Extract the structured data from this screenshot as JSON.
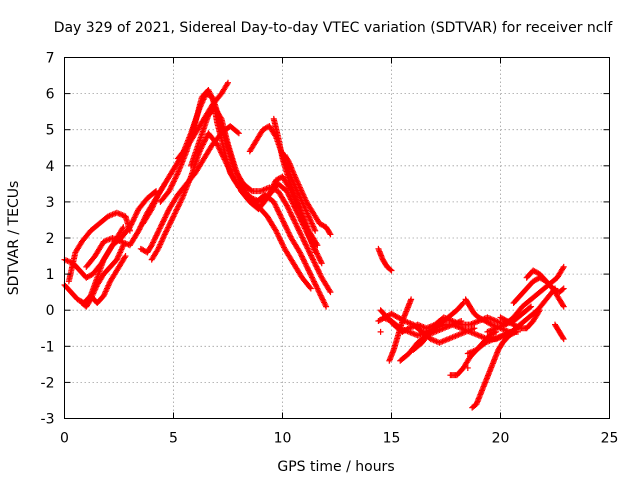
{
  "chart_data": {
    "type": "scatter",
    "title": "Day 329 of 2021, Sidereal Day-to-day VTEC variation (SDTVAR) for receiver nclf",
    "xlabel": "GPS time / hours",
    "ylabel": "SDTVAR / TECUs",
    "xlim": [
      0,
      25
    ],
    "ylim": [
      -3,
      7
    ],
    "xticks": [
      "0",
      "5",
      "10",
      "15",
      "20",
      "25"
    ],
    "yticks": [
      "-3",
      "-2",
      "-1",
      "0",
      "1",
      "2",
      "3",
      "4",
      "5",
      "6",
      "7"
    ],
    "grid": true,
    "marker": "+",
    "series_color": "#ff0000",
    "tracks": [
      [
        [
          0.0,
          0.7
        ],
        [
          0.3,
          0.5
        ],
        [
          0.6,
          0.3
        ],
        [
          0.9,
          0.2
        ],
        [
          1.2,
          0.4
        ],
        [
          1.5,
          0.9
        ],
        [
          1.8,
          1.4
        ],
        [
          2.2,
          1.8
        ],
        [
          2.6,
          2.0
        ],
        [
          3.0,
          2.3
        ],
        [
          3.4,
          2.8
        ],
        [
          3.8,
          3.1
        ],
        [
          4.2,
          3.3
        ]
      ],
      [
        [
          0.0,
          1.4
        ],
        [
          0.4,
          1.3
        ],
        [
          0.7,
          1.1
        ],
        [
          1.0,
          0.9
        ],
        [
          1.3,
          1.0
        ],
        [
          1.7,
          1.3
        ],
        [
          2.0,
          1.6
        ],
        [
          2.3,
          1.9
        ],
        [
          2.7,
          2.3
        ]
      ],
      [
        [
          0.2,
          0.8
        ],
        [
          0.5,
          1.6
        ],
        [
          0.8,
          1.9
        ],
        [
          1.2,
          2.2
        ],
        [
          1.6,
          2.4
        ],
        [
          2.0,
          2.6
        ],
        [
          2.4,
          2.7
        ],
        [
          2.8,
          2.6
        ],
        [
          3.0,
          2.2
        ]
      ],
      [
        [
          0.8,
          0.2
        ],
        [
          1.0,
          0.1
        ],
        [
          1.2,
          0.3
        ],
        [
          1.5,
          0.7
        ],
        [
          1.8,
          1.0
        ],
        [
          2.1,
          1.2
        ],
        [
          2.4,
          1.4
        ],
        [
          2.7,
          1.8
        ]
      ],
      [
        [
          1.0,
          1.2
        ],
        [
          1.4,
          1.5
        ],
        [
          1.8,
          1.9
        ],
        [
          2.2,
          2.0
        ],
        [
          2.6,
          1.9
        ],
        [
          3.0,
          1.8
        ],
        [
          3.4,
          2.2
        ],
        [
          3.8,
          2.7
        ],
        [
          4.2,
          3.1
        ],
        [
          4.6,
          3.5
        ]
      ],
      [
        [
          1.2,
          0.4
        ],
        [
          1.5,
          0.2
        ],
        [
          1.8,
          0.4
        ],
        [
          2.1,
          0.8
        ],
        [
          2.4,
          1.1
        ],
        [
          2.8,
          1.5
        ]
      ],
      [
        [
          3.5,
          1.7
        ],
        [
          3.8,
          1.6
        ],
        [
          4.0,
          1.8
        ],
        [
          4.4,
          2.3
        ],
        [
          4.8,
          2.8
        ],
        [
          5.2,
          3.2
        ],
        [
          5.6,
          3.5
        ],
        [
          6.0,
          3.8
        ],
        [
          6.4,
          4.2
        ],
        [
          6.8,
          4.6
        ],
        [
          7.2,
          4.9
        ],
        [
          7.6,
          5.1
        ],
        [
          8.0,
          4.9
        ]
      ],
      [
        [
          3.6,
          2.4
        ],
        [
          4.0,
          2.8
        ],
        [
          4.3,
          3.2
        ],
        [
          4.6,
          3.5
        ],
        [
          5.0,
          3.9
        ],
        [
          5.4,
          4.3
        ],
        [
          5.8,
          4.9
        ],
        [
          6.2,
          5.6
        ],
        [
          6.5,
          6.0
        ],
        [
          6.8,
          5.9
        ],
        [
          7.0,
          5.2
        ],
        [
          7.3,
          4.5
        ],
        [
          7.6,
          3.8
        ],
        [
          8.0,
          3.4
        ],
        [
          8.4,
          3.1
        ],
        [
          8.8,
          3.0
        ],
        [
          9.2,
          3.2
        ],
        [
          9.6,
          3.0
        ],
        [
          10.0,
          2.5
        ],
        [
          10.4,
          2.0
        ],
        [
          10.8,
          1.6
        ],
        [
          11.2,
          1.1
        ],
        [
          11.6,
          0.6
        ],
        [
          12.0,
          0.1
        ]
      ],
      [
        [
          4.4,
          3.0
        ],
        [
          4.8,
          3.3
        ],
        [
          5.2,
          3.8
        ],
        [
          5.6,
          4.4
        ],
        [
          6.0,
          5.2
        ],
        [
          6.3,
          5.9
        ],
        [
          6.6,
          6.1
        ],
        [
          6.9,
          5.7
        ],
        [
          7.2,
          5.1
        ],
        [
          7.5,
          4.5
        ],
        [
          7.8,
          3.9
        ],
        [
          8.2,
          3.5
        ],
        [
          8.6,
          3.3
        ],
        [
          9.0,
          3.3
        ],
        [
          9.4,
          3.4
        ],
        [
          9.8,
          3.3
        ],
        [
          10.2,
          2.9
        ],
        [
          10.6,
          2.4
        ],
        [
          11.0,
          1.9
        ],
        [
          11.4,
          1.4
        ],
        [
          11.8,
          0.9
        ],
        [
          12.2,
          0.5
        ]
      ],
      [
        [
          4.0,
          1.4
        ],
        [
          4.3,
          1.7
        ],
        [
          4.6,
          2.1
        ],
        [
          5.0,
          2.6
        ],
        [
          5.4,
          3.1
        ],
        [
          5.8,
          3.7
        ],
        [
          6.2,
          4.4
        ],
        [
          6.6,
          4.9
        ],
        [
          7.0,
          4.6
        ],
        [
          7.4,
          4.1
        ],
        [
          7.8,
          3.6
        ],
        [
          8.2,
          3.3
        ],
        [
          8.6,
          3.1
        ],
        [
          9.0,
          3.0
        ],
        [
          9.4,
          3.2
        ],
        [
          9.8,
          3.5
        ],
        [
          10.2,
          3.3
        ],
        [
          10.6,
          2.8
        ],
        [
          11.0,
          2.3
        ],
        [
          11.4,
          1.8
        ],
        [
          11.8,
          1.3
        ]
      ],
      [
        [
          5.2,
          4.2
        ],
        [
          5.6,
          4.5
        ],
        [
          6.0,
          4.9
        ],
        [
          6.4,
          5.3
        ],
        [
          6.8,
          5.7
        ],
        [
          7.2,
          6.0
        ],
        [
          7.5,
          6.3
        ]
      ],
      [
        [
          5.8,
          4.0
        ],
        [
          6.2,
          4.7
        ],
        [
          6.6,
          5.4
        ],
        [
          6.9,
          5.6
        ],
        [
          7.2,
          5.3
        ],
        [
          7.5,
          4.6
        ],
        [
          7.8,
          4.0
        ],
        [
          8.1,
          3.5
        ],
        [
          8.4,
          3.2
        ],
        [
          8.7,
          3.0
        ],
        [
          9.0,
          2.8
        ],
        [
          9.3,
          2.6
        ],
        [
          9.7,
          2.2
        ],
        [
          10.1,
          1.7
        ],
        [
          10.5,
          1.3
        ],
        [
          10.9,
          0.9
        ],
        [
          11.3,
          0.6
        ]
      ],
      [
        [
          8.5,
          4.4
        ],
        [
          8.8,
          4.7
        ],
        [
          9.1,
          5.0
        ],
        [
          9.4,
          5.1
        ],
        [
          9.7,
          4.8
        ],
        [
          10.0,
          4.3
        ],
        [
          10.3,
          3.8
        ],
        [
          10.6,
          3.4
        ],
        [
          10.9,
          3.0
        ],
        [
          11.2,
          2.6
        ],
        [
          11.5,
          2.2
        ]
      ],
      [
        [
          8.1,
          3.3
        ],
        [
          8.5,
          3.0
        ],
        [
          8.9,
          2.8
        ],
        [
          9.3,
          3.1
        ],
        [
          9.7,
          3.6
        ],
        [
          10.0,
          3.7
        ],
        [
          10.4,
          3.3
        ],
        [
          10.8,
          2.8
        ],
        [
          11.2,
          2.2
        ],
        [
          11.6,
          1.8
        ]
      ],
      [
        [
          9.6,
          5.3
        ],
        [
          9.8,
          4.8
        ],
        [
          10.0,
          4.2
        ],
        [
          10.3,
          3.6
        ],
        [
          10.6,
          3.1
        ],
        [
          10.9,
          2.6
        ],
        [
          11.2,
          2.1
        ],
        [
          11.5,
          1.6
        ]
      ],
      [
        [
          10.1,
          4.3
        ],
        [
          10.3,
          4.1
        ],
        [
          10.5,
          3.8
        ],
        [
          10.8,
          3.4
        ],
        [
          11.1,
          3.0
        ],
        [
          11.4,
          2.7
        ],
        [
          11.7,
          2.4
        ],
        [
          12.0,
          2.3
        ],
        [
          12.2,
          2.1
        ]
      ],
      [
        [
          14.4,
          1.7
        ],
        [
          14.6,
          1.4
        ],
        [
          14.8,
          1.2
        ],
        [
          15.0,
          1.1
        ]
      ],
      [
        [
          14.4,
          -0.3
        ],
        [
          14.7,
          -0.2
        ],
        [
          15.0,
          -0.1
        ],
        [
          15.3,
          -0.2
        ],
        [
          15.6,
          -0.3
        ],
        [
          16.0,
          -0.4
        ],
        [
          16.4,
          -0.6
        ],
        [
          16.8,
          -0.8
        ],
        [
          17.2,
          -0.9
        ],
        [
          17.6,
          -0.8
        ],
        [
          18.0,
          -0.7
        ],
        [
          18.4,
          -0.6
        ],
        [
          18.8,
          -0.5
        ]
      ],
      [
        [
          14.5,
          0.0
        ],
        [
          14.8,
          -0.2
        ],
        [
          15.1,
          -0.4
        ],
        [
          15.5,
          -0.6
        ],
        [
          15.8,
          -0.5
        ],
        [
          16.2,
          -0.4
        ],
        [
          16.6,
          -0.5
        ],
        [
          17.0,
          -0.4
        ],
        [
          17.4,
          -0.2
        ],
        [
          17.8,
          -0.3
        ],
        [
          18.2,
          -0.4
        ],
        [
          18.6,
          -0.4
        ],
        [
          19.0,
          -0.3
        ],
        [
          19.4,
          -0.2
        ],
        [
          19.8,
          -0.3
        ],
        [
          20.2,
          -0.4
        ],
        [
          20.6,
          -0.3
        ],
        [
          21.0,
          -0.1
        ],
        [
          21.4,
          0.1
        ]
      ],
      [
        [
          14.6,
          -0.2
        ],
        [
          15.0,
          -0.3
        ],
        [
          15.4,
          -0.5
        ],
        [
          15.8,
          -0.6
        ],
        [
          16.2,
          -0.7
        ],
        [
          16.6,
          -0.6
        ],
        [
          17.0,
          -0.5
        ],
        [
          17.4,
          -0.4
        ],
        [
          17.8,
          -0.4
        ],
        [
          18.2,
          -0.5
        ],
        [
          18.6,
          -0.6
        ],
        [
          19.0,
          -0.7
        ],
        [
          19.4,
          -0.8
        ],
        [
          19.8,
          -0.8
        ],
        [
          20.2,
          -0.7
        ]
      ],
      [
        [
          15.9,
          0.3
        ],
        [
          15.7,
          0.0
        ],
        [
          15.5,
          -0.3
        ],
        [
          15.3,
          -0.7
        ],
        [
          15.1,
          -1.1
        ],
        [
          14.9,
          -1.4
        ]
      ],
      [
        [
          15.4,
          -1.4
        ],
        [
          15.8,
          -1.2
        ],
        [
          16.2,
          -0.9
        ],
        [
          16.6,
          -0.7
        ],
        [
          17.0,
          -0.6
        ],
        [
          17.4,
          -0.5
        ],
        [
          17.8,
          -0.4
        ],
        [
          18.2,
          -0.3
        ]
      ],
      [
        [
          16.0,
          -1.1
        ],
        [
          16.4,
          -0.9
        ],
        [
          16.8,
          -0.6
        ],
        [
          17.2,
          -0.4
        ],
        [
          17.6,
          -0.2
        ],
        [
          18.0,
          0.0
        ],
        [
          18.3,
          0.2
        ]
      ],
      [
        [
          18.4,
          0.3
        ],
        [
          18.6,
          0.1
        ],
        [
          18.8,
          -0.1
        ],
        [
          19.0,
          -0.2
        ],
        [
          19.3,
          -0.3
        ],
        [
          19.6,
          -0.4
        ],
        [
          20.0,
          -0.5
        ],
        [
          20.4,
          -0.6
        ],
        [
          20.8,
          -0.6
        ]
      ],
      [
        [
          17.7,
          -1.8
        ],
        [
          18.0,
          -1.8
        ],
        [
          18.3,
          -1.6
        ],
        [
          18.6,
          -1.3
        ],
        [
          18.9,
          -1.1
        ],
        [
          19.2,
          -0.9
        ],
        [
          19.5,
          -0.7
        ],
        [
          19.8,
          -0.6
        ]
      ],
      [
        [
          18.7,
          -2.7
        ],
        [
          18.9,
          -2.6
        ],
        [
          19.1,
          -2.3
        ],
        [
          19.3,
          -2.0
        ],
        [
          19.5,
          -1.7
        ],
        [
          19.7,
          -1.4
        ],
        [
          19.9,
          -1.1
        ],
        [
          20.1,
          -0.9
        ],
        [
          20.4,
          -0.7
        ],
        [
          20.7,
          -0.6
        ]
      ],
      [
        [
          18.5,
          -1.2
        ],
        [
          18.9,
          -1.1
        ],
        [
          19.3,
          -0.9
        ],
        [
          19.7,
          -0.8
        ],
        [
          20.1,
          -0.7
        ],
        [
          20.5,
          -0.6
        ],
        [
          20.9,
          -0.4
        ],
        [
          21.3,
          -0.2
        ],
        [
          21.7,
          0.0
        ],
        [
          22.1,
          0.3
        ],
        [
          22.5,
          0.6
        ]
      ],
      [
        [
          19.4,
          -0.6
        ],
        [
          19.8,
          -0.5
        ],
        [
          20.2,
          -0.4
        ],
        [
          20.6,
          -0.2
        ],
        [
          21.0,
          0.1
        ],
        [
          21.4,
          0.3
        ],
        [
          21.8,
          0.5
        ],
        [
          22.2,
          0.7
        ],
        [
          22.6,
          0.9
        ],
        [
          22.9,
          1.2
        ]
      ],
      [
        [
          20.6,
          0.2
        ],
        [
          20.9,
          0.4
        ],
        [
          21.2,
          0.6
        ],
        [
          21.5,
          0.8
        ],
        [
          21.8,
          0.9
        ],
        [
          22.1,
          0.8
        ],
        [
          22.4,
          0.6
        ],
        [
          22.7,
          0.3
        ],
        [
          22.9,
          0.1
        ]
      ],
      [
        [
          21.2,
          0.9
        ],
        [
          21.5,
          1.1
        ],
        [
          21.8,
          1.0
        ],
        [
          22.1,
          0.8
        ],
        [
          22.4,
          0.6
        ],
        [
          22.7,
          0.5
        ],
        [
          22.9,
          0.6
        ]
      ],
      [
        [
          22.5,
          -0.4
        ],
        [
          22.7,
          -0.6
        ],
        [
          22.9,
          -0.8
        ]
      ],
      [
        [
          20.0,
          -0.2
        ],
        [
          20.3,
          -0.3
        ],
        [
          20.6,
          -0.4
        ],
        [
          20.9,
          -0.5
        ],
        [
          21.2,
          -0.5
        ],
        [
          21.5,
          -0.3
        ],
        [
          21.8,
          0.0
        ]
      ]
    ],
    "outliers": [
      [
        14.5,
        -0.6
      ],
      [
        18.5,
        -1.6
      ],
      [
        17.2,
        -0.3
      ]
    ]
  }
}
